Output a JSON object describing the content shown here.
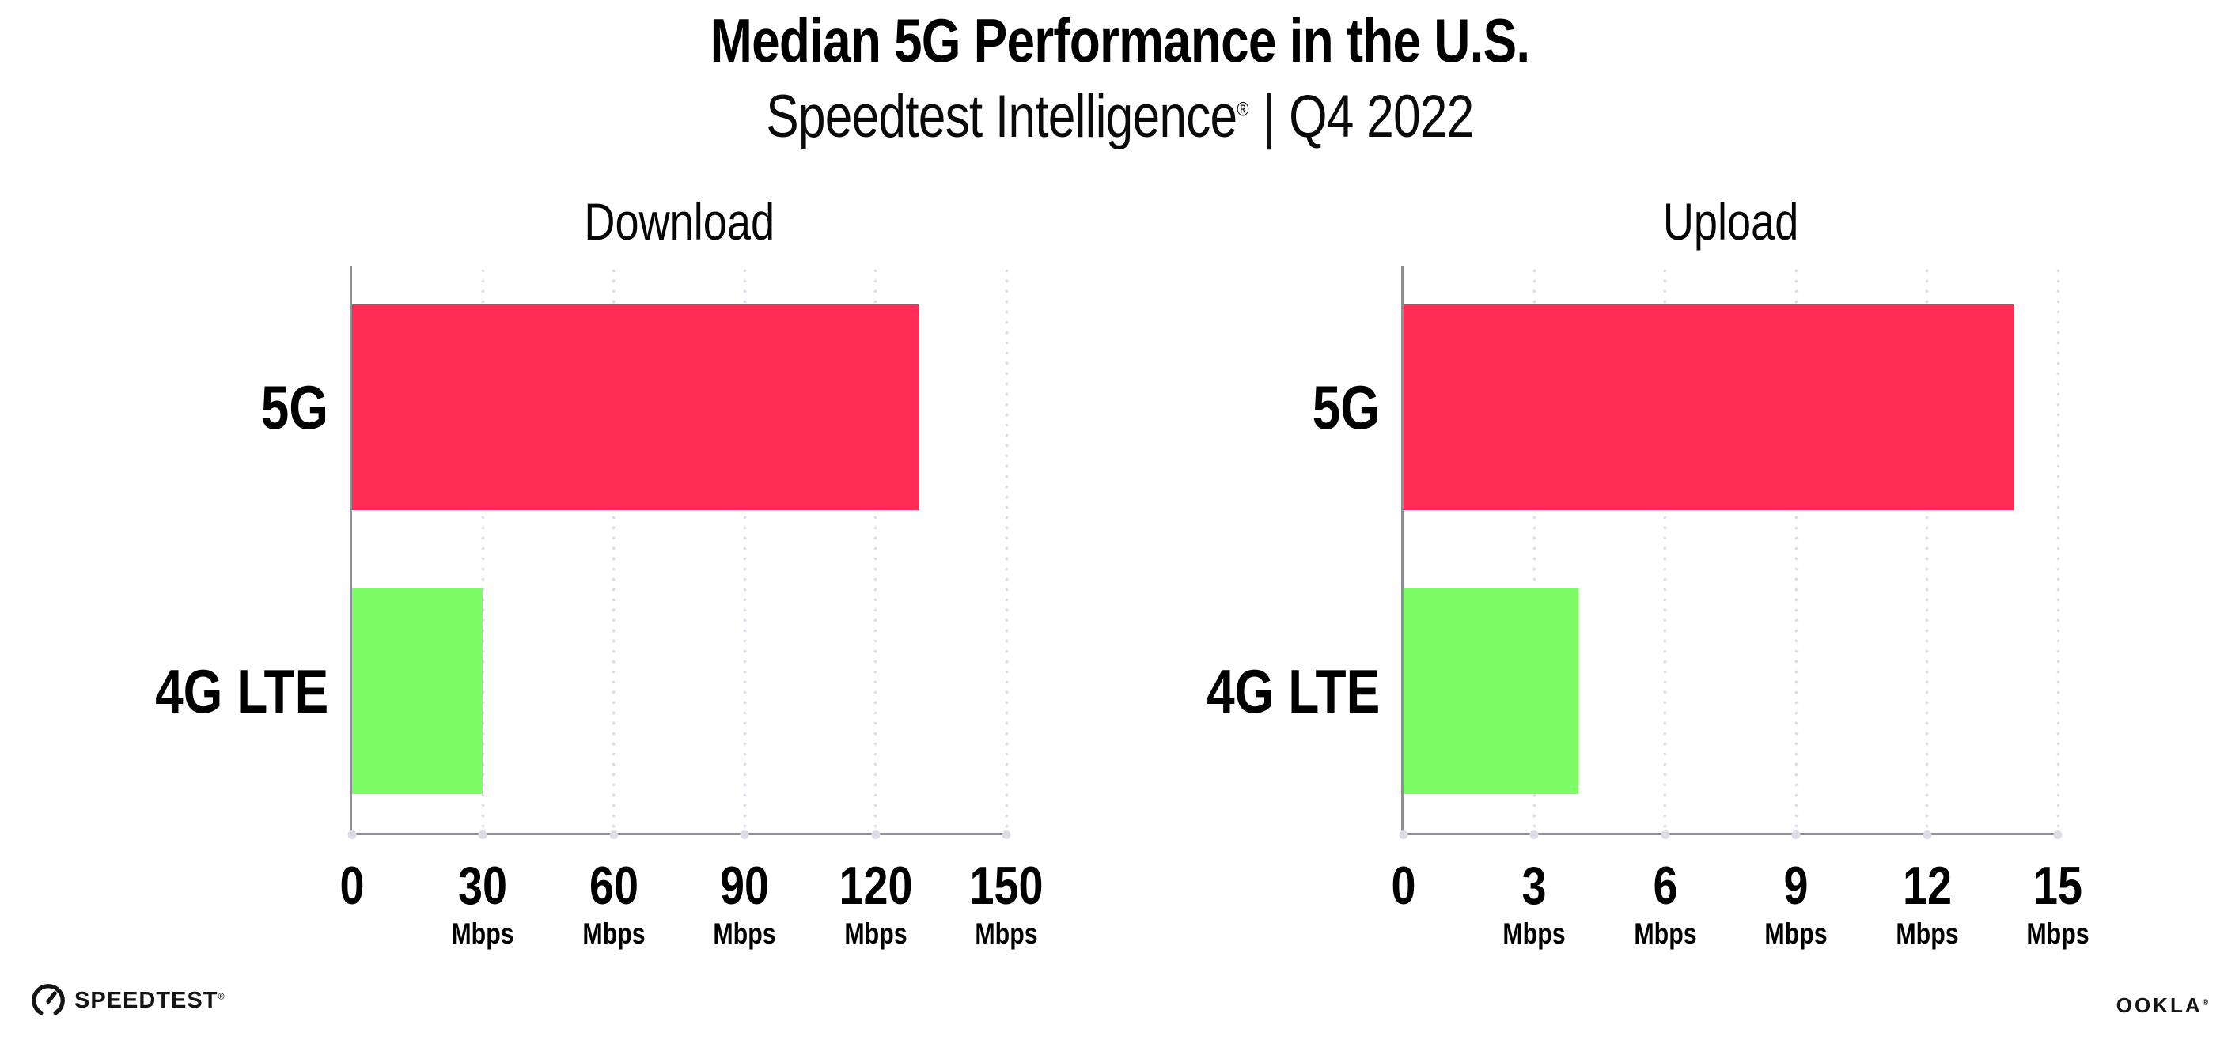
{
  "header": {
    "title": "Median 5G Performance in the U.S.",
    "subtitle_brand": "Speedtest Intelligence",
    "registered_mark": "®",
    "subtitle_separator": "|",
    "subtitle_period": "Q4 2022"
  },
  "chart_data": [
    {
      "type": "bar",
      "orientation": "horizontal",
      "title": "Download",
      "categories": [
        "5G",
        "4G LTE"
      ],
      "values": [
        130,
        30
      ],
      "unit": "Mbps",
      "xlim": [
        0,
        150
      ],
      "xticks": [
        0,
        30,
        60,
        90,
        120,
        150
      ],
      "bar_colors": [
        "#FF2D55",
        "#7DFC66"
      ],
      "grid": "dotted-vertical-at-major-ticks",
      "legend": "none"
    },
    {
      "type": "bar",
      "orientation": "horizontal",
      "title": "Upload",
      "categories": [
        "5G",
        "4G LTE"
      ],
      "values": [
        14,
        4
      ],
      "unit": "Mbps",
      "xlim": [
        0,
        15
      ],
      "xticks": [
        0,
        3,
        6,
        9,
        12,
        15
      ],
      "bar_colors": [
        "#FF2D55",
        "#7DFC66"
      ],
      "grid": "dotted-vertical-at-major-ticks",
      "legend": "none"
    }
  ],
  "footer": {
    "speedtest_logo_text": "SPEEDTEST",
    "speedtest_trademark": "®",
    "speedtest_icon": "speedtest-gauge-icon",
    "ookla_logo_text": "OOKLA",
    "ookla_trademark": "®"
  },
  "colors": {
    "bar_5g": "#FF2D55",
    "bar_4g_lte": "#7DFC66",
    "axis": "#8F8F99",
    "gridline_dots": "#DFDFEA",
    "text": "#000000",
    "background": "#FFFFFF"
  }
}
